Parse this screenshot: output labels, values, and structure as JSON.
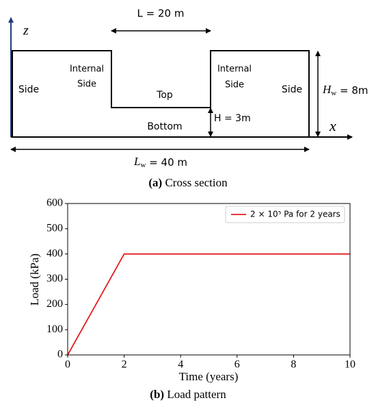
{
  "diagram": {
    "z_axis": "z",
    "x_axis": "x",
    "top_width": "L = 20 m",
    "left_side": "Side",
    "left_internal": [
      "Internal",
      "Side"
    ],
    "top": "Top",
    "bottom": "Bottom",
    "right_internal": [
      "Internal",
      "Side"
    ],
    "right_side": "Side",
    "depth": "H = 3m",
    "height": {
      "main": "H",
      "sub": "w",
      "rest": " = 8m"
    },
    "width": {
      "main": "L",
      "sub": "w",
      "rest": " = 40 m"
    }
  },
  "caption_a": {
    "tag": "(a)",
    "text": "Cross section"
  },
  "chart_data": {
    "type": "line",
    "x_label": "Time (years)",
    "y_label": "Load (kPa)",
    "x": [
      0,
      2,
      10
    ],
    "series": [
      {
        "name": "2 × 10⁵ Pa for 2 years",
        "color": "#e41a1c",
        "values": [
          0,
          400,
          400
        ]
      }
    ],
    "xlim": [
      0,
      10
    ],
    "xticks": [
      0,
      2,
      4,
      6,
      8,
      10
    ],
    "ylim": [
      0,
      600
    ],
    "yticks": [
      0,
      100,
      200,
      300,
      400,
      500,
      600
    ],
    "legend": "upper right"
  },
  "caption_b": {
    "tag": "(b)",
    "text": "Load pattern"
  }
}
